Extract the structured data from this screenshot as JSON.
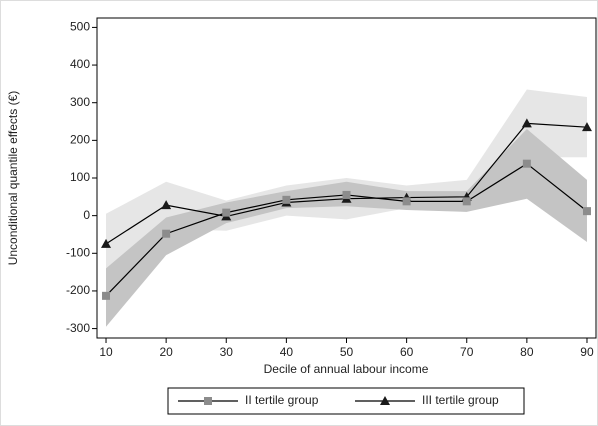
{
  "chart_data": {
    "type": "line",
    "x": [
      10,
      20,
      30,
      40,
      50,
      60,
      70,
      80,
      90
    ],
    "xlabel": "Decile of annual labour income",
    "ylabel": "Unconditional quantile effects (€)",
    "xlim": [
      8.5,
      91.5
    ],
    "xticks": [
      10,
      20,
      30,
      40,
      50,
      60,
      70,
      80,
      90
    ],
    "ylim": [
      -325,
      525
    ],
    "yticks": [
      -300,
      -200,
      -100,
      0,
      100,
      200,
      300,
      400,
      500
    ],
    "series": [
      {
        "name": "III tertile group",
        "color": "#1a1a1a",
        "marker": "triangle",
        "band_color": "#e6e6e6",
        "values": [
          -75,
          28,
          -2,
          35,
          45,
          48,
          50,
          245,
          235
        ],
        "lower": [
          -155,
          -35,
          -40,
          0,
          -10,
          20,
          10,
          155,
          155
        ],
        "upper": [
          5,
          90,
          40,
          80,
          100,
          80,
          95,
          335,
          315
        ]
      },
      {
        "name": "II tertile group",
        "color": "#8c8c8c",
        "marker": "square",
        "band_color": "#c4c4c4",
        "values": [
          -213,
          -48,
          8,
          42,
          55,
          38,
          38,
          138,
          12
        ],
        "lower": [
          -295,
          -105,
          -20,
          20,
          25,
          15,
          10,
          45,
          -70
        ],
        "upper": [
          -140,
          -5,
          35,
          65,
          90,
          65,
          65,
          230,
          95
        ]
      }
    ],
    "legend_order": [
      1,
      0
    ]
  }
}
